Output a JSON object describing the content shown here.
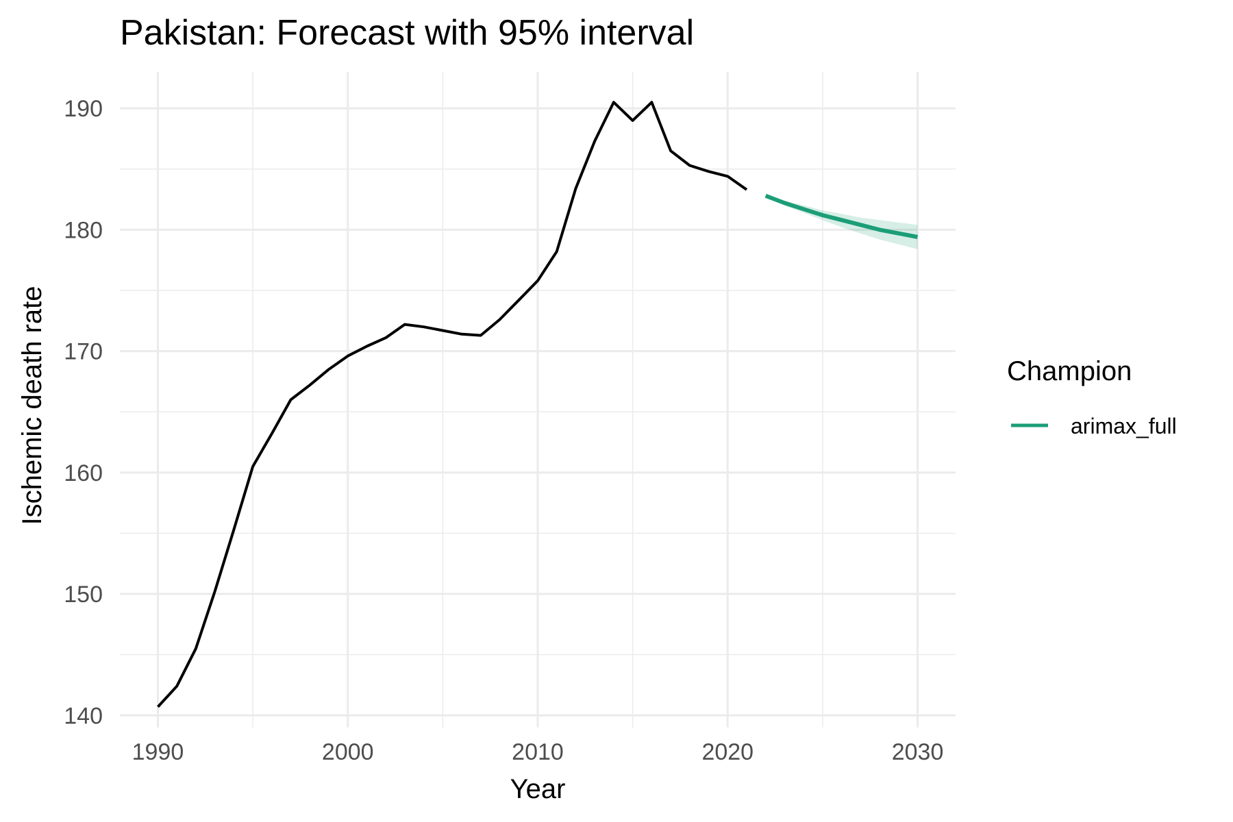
{
  "chart_data": {
    "type": "line",
    "title": "Pakistan: Forecast with 95% interval",
    "xlabel": "Year",
    "ylabel": "Ischemic death rate",
    "xlim": [
      1988,
      2032
    ],
    "ylim": [
      139,
      193
    ],
    "x_ticks": [
      1990,
      2000,
      2010,
      2020,
      2030
    ],
    "y_ticks": [
      140,
      150,
      160,
      170,
      180,
      190
    ],
    "grid": true,
    "legend": {
      "title": "Champion",
      "position": "right"
    },
    "series": [
      {
        "role": "history",
        "color": "#000000",
        "x": [
          1990,
          1991,
          1992,
          1993,
          1994,
          1995,
          1996,
          1997,
          1998,
          1999,
          2000,
          2001,
          2002,
          2003,
          2004,
          2005,
          2006,
          2007,
          2008,
          2009,
          2010,
          2011,
          2012,
          2013,
          2014,
          2015,
          2016,
          2017,
          2018,
          2019,
          2020,
          2021
        ],
        "y": [
          140.7,
          142.4,
          145.5,
          150.2,
          155.3,
          160.5,
          163.2,
          166.0,
          167.2,
          168.5,
          169.6,
          170.4,
          171.1,
          172.2,
          172.0,
          171.7,
          171.4,
          171.3,
          172.6,
          174.2,
          175.8,
          178.2,
          183.4,
          187.3,
          190.5,
          189.0,
          190.5,
          186.5,
          185.3,
          184.8,
          184.4,
          183.3
        ]
      },
      {
        "name": "arimax_full",
        "role": "forecast",
        "color": "#1b9e77",
        "x": [
          2022,
          2023,
          2024,
          2025,
          2026,
          2027,
          2028,
          2029,
          2030
        ],
        "y": [
          182.8,
          182.2,
          181.7,
          181.2,
          180.8,
          180.4,
          180.0,
          179.7,
          179.4
        ],
        "lower": [
          182.7,
          182.0,
          181.4,
          180.8,
          180.2,
          179.7,
          179.2,
          178.8,
          178.4
        ],
        "upper": [
          182.9,
          182.4,
          182.0,
          181.6,
          181.3,
          181.0,
          180.8,
          180.6,
          180.4
        ]
      }
    ]
  }
}
